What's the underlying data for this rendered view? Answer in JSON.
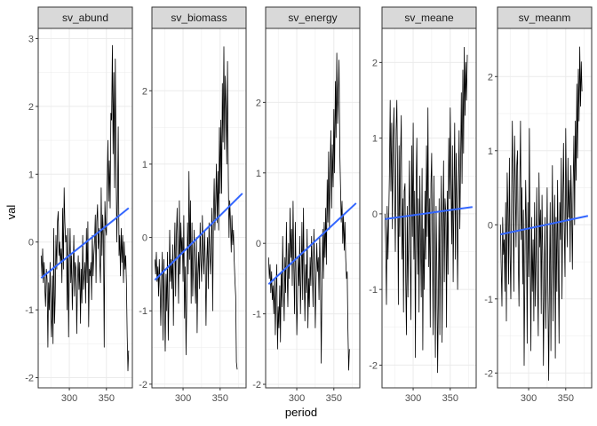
{
  "chart_data": {
    "type": "line",
    "xlabel": "period",
    "ylabel": "val",
    "grid": true,
    "colors": {
      "line": "#000000",
      "trend": "#3366ff",
      "strip": "#d9d9d9",
      "grid": "#ebebeb",
      "border": "#333333"
    },
    "x_start": 262,
    "x_step": 1,
    "x_ticks": [
      300,
      350
    ],
    "xlim": [
      258,
      385
    ],
    "panels": [
      {
        "name": "sv_abund",
        "ylim": [
          -2.15,
          3.15
        ],
        "y_ticks": [
          -2,
          -1,
          0,
          1,
          2,
          3
        ],
        "trend": {
          "x": [
            262,
            380
          ],
          "y": [
            -0.53,
            0.5
          ]
        },
        "values": [
          -0.2,
          -0.5,
          -0.1,
          -0.6,
          -0.3,
          -0.7,
          -0.95,
          -0.4,
          -0.55,
          -1.55,
          -0.6,
          -1.0,
          -0.3,
          -1.1,
          -1.4,
          -0.5,
          -1.5,
          0.2,
          -1.2,
          -0.8,
          0.1,
          -0.4,
          0.3,
          0.45,
          -0.2,
          0.0,
          -0.3,
          -0.1,
          -0.6,
          0.5,
          -0.4,
          0.8,
          0.3,
          0.0,
          0.1,
          -1.0,
          0.2,
          -1.4,
          -0.3,
          0.2,
          -0.6,
          -0.2,
          -1.0,
          -0.5,
          0.1,
          -0.8,
          -0.3,
          -0.4,
          -1.35,
          -0.6,
          -0.2,
          -0.7,
          -0.3,
          -1.2,
          -0.4,
          -0.9,
          0.1,
          -0.7,
          -0.5,
          -0.3,
          -0.9,
          0.2,
          -0.6,
          0.3,
          -1.25,
          -0.4,
          -0.5,
          -0.3,
          -0.85,
          0.1,
          -0.5,
          -0.2,
          0.0,
          0.4,
          -0.6,
          0.3,
          0.55,
          -0.1,
          0.2,
          -0.3,
          -0.6,
          0.8,
          -0.2,
          0.4,
          0.1,
          -1.55,
          0.6,
          0.2,
          0.1,
          0.8,
          1.5,
          0.6,
          1.2,
          0.5,
          1.9,
          1.8,
          2.9,
          1.3,
          2.5,
          0.8,
          2.7,
          1.2,
          0.0,
          0.7,
          1.7,
          -0.2,
          0.1,
          -0.5,
          0.2,
          -0.3,
          0.1,
          -0.6,
          0.0,
          -0.4,
          -0.2,
          -0.6,
          -1.4,
          -1.9,
          -1.6
        ]
      },
      {
        "name": "sv_biomass",
        "ylim": [
          -2.05,
          2.85
        ],
        "y_ticks": [
          -2,
          -1,
          0,
          1,
          2
        ],
        "trend": {
          "x": [
            262,
            380
          ],
          "y": [
            -0.58,
            0.6
          ]
        },
        "values": [
          -0.3,
          -0.5,
          -0.2,
          -0.6,
          -0.4,
          -0.8,
          -0.3,
          -0.7,
          -1.2,
          -0.6,
          -0.2,
          -1.4,
          -0.3,
          -0.9,
          -1.55,
          -0.5,
          -1.0,
          -0.2,
          -1.4,
          -0.8,
          0.1,
          -0.6,
          -0.3,
          -0.7,
          -0.1,
          -1.2,
          -0.4,
          0.2,
          -0.8,
          0.0,
          0.4,
          -0.3,
          -0.9,
          0.5,
          -0.5,
          0.2,
          -0.2,
          0.0,
          -0.6,
          0.3,
          -1.1,
          -0.4,
          -1.6,
          -0.9,
          0.2,
          -0.5,
          0.9,
          -0.3,
          0.5,
          -0.9,
          0.2,
          -0.8,
          -0.4,
          0.1,
          -0.6,
          -0.9,
          0.0,
          -1.3,
          -0.5,
          -0.2,
          -0.7,
          0.2,
          -0.3,
          -0.6,
          0.3,
          -0.2,
          -0.5,
          0.1,
          -0.4,
          -1.2,
          -0.3,
          0.0,
          -0.7,
          0.2,
          -0.2,
          -0.5,
          0.0,
          0.4,
          -1.0,
          0.3,
          0.8,
          0.1,
          0.5,
          1.0,
          0.2,
          0.9,
          0.1,
          1.5,
          0.6,
          1.6,
          0.6,
          2.1,
          1.3,
          2.6,
          1.2,
          2.2,
          1.7,
          1.0,
          2.4,
          0.8,
          0.0,
          0.5,
          0.2,
          -0.2,
          0.3,
          -0.1,
          0.1,
          -0.3,
          -0.6,
          -0.8,
          -1.7,
          -1.8
        ]
      },
      {
        "name": "sv_energy",
        "ylim": [
          -2.05,
          3.05
        ],
        "y_ticks": [
          -2,
          -1,
          0,
          1,
          2
        ],
        "trend": {
          "x": [
            262,
            380
          ],
          "y": [
            -0.58,
            0.57
          ]
        },
        "values": [
          -0.2,
          -0.5,
          -0.3,
          -0.7,
          -0.4,
          -0.8,
          -0.6,
          -1.0,
          -0.5,
          -1.3,
          -0.7,
          -0.3,
          -1.5,
          -0.9,
          -1.2,
          -0.6,
          -1.4,
          -0.4,
          -0.9,
          0.1,
          -0.6,
          -1.1,
          -0.2,
          -0.7,
          0.3,
          -0.4,
          -0.9,
          0.0,
          -0.5,
          0.5,
          -0.2,
          0.2,
          -0.6,
          0.6,
          -0.3,
          -1.0,
          0.3,
          -0.4,
          -1.3,
          -0.8,
          -0.2,
          -0.6,
          0.1,
          -1.0,
          -0.4,
          0.3,
          -0.8,
          0.5,
          -0.5,
          -1.1,
          -0.3,
          -0.7,
          0.2,
          -1.2,
          -0.5,
          -0.9,
          -0.2,
          -0.6,
          0.1,
          -0.4,
          -0.9,
          0.2,
          -0.3,
          -1.2,
          -0.5,
          0.0,
          -0.4,
          -0.2,
          -0.8,
          0.1,
          -0.5,
          -1.7,
          -0.6,
          0.2,
          -0.5,
          0.3,
          -0.2,
          0.5,
          -0.3,
          0.9,
          0.3,
          1.3,
          0.2,
          1.0,
          1.6,
          0.5,
          1.4,
          0.8,
          1.9,
          1.0,
          2.3,
          1.5,
          2.7,
          1.7,
          2.1,
          2.6,
          1.3,
          0.8,
          0.3,
          0.6,
          0.0,
          0.4,
          -0.1,
          0.3,
          -0.2,
          -0.5,
          -0.4,
          -1.2,
          -1.8,
          -1.5
        ]
      },
      {
        "name": "sv_meane",
        "ylim": [
          -2.3,
          2.45
        ],
        "y_ticks": [
          -2,
          -1,
          0,
          1,
          2
        ],
        "trend": {
          "x": [
            262,
            380
          ],
          "y": [
            -0.07,
            0.09
          ]
        },
        "values": [
          0.0,
          -0.4,
          -1.2,
          0.1,
          -0.6,
          -0.1,
          0.5,
          1.5,
          0.3,
          1.2,
          -0.2,
          0.9,
          1.4,
          0.4,
          -0.5,
          1.1,
          1.5,
          0.6,
          -1.2,
          0.9,
          -0.3,
          0.8,
          1.3,
          -0.6,
          0.2,
          -1.3,
          0.3,
          0.4,
          -0.9,
          -1.6,
          0.1,
          -1.1,
          -0.2,
          0.7,
          -0.5,
          -1.4,
          0.9,
          -0.3,
          1.2,
          -0.6,
          0.3,
          -1.9,
          0.4,
          1.0,
          -0.8,
          0.2,
          -1.3,
          0.5,
          -0.4,
          -1.1,
          0.6,
          -1.8,
          -0.2,
          -1.0,
          0.3,
          -0.6,
          0.9,
          -0.3,
          1.4,
          -0.7,
          0.2,
          -1.5,
          0.4,
          0.8,
          -0.5,
          -1.6,
          0.5,
          -0.9,
          -1.9,
          0.1,
          -0.8,
          -2.1,
          -1.2,
          0.2,
          -1.6,
          -0.3,
          0.5,
          -1.7,
          -0.4,
          0.7,
          -0.9,
          0.2,
          0.0,
          -1.5,
          0.3,
          -0.8,
          1.0,
          0.2,
          1.4,
          0.5,
          -0.4,
          0.9,
          -0.9,
          0.3,
          1.2,
          -0.6,
          0.8,
          0.0,
          -1.0,
          0.4,
          1.1,
          -0.2,
          0.7,
          1.6,
          0.4,
          1.9,
          0.8,
          2.2,
          1.3,
          2.0,
          1.5,
          2.1
        ]
      },
      {
        "name": "sv_meanm",
        "ylim": [
          -2.2,
          2.65
        ],
        "y_ticks": [
          -2,
          -1,
          0,
          1,
          2
        ],
        "trend": {
          "x": [
            262,
            380
          ],
          "y": [
            -0.13,
            0.12
          ]
        },
        "values": [
          0.0,
          -0.6,
          -1.1,
          0.1,
          -0.4,
          -0.2,
          -0.9,
          0.3,
          -1.3,
          0.7,
          0.2,
          -0.8,
          0.9,
          -0.4,
          -1.0,
          0.4,
          1.4,
          0.3,
          -0.9,
          1.2,
          0.6,
          -0.3,
          0.8,
          1.0,
          -0.5,
          -1.1,
          0.4,
          1.4,
          -0.2,
          0.5,
          -0.8,
          0.2,
          -1.9,
          -0.5,
          0.6,
          -0.1,
          -1.6,
          0.3,
          -0.7,
          1.3,
          -0.4,
          -1.7,
          0.1,
          -0.9,
          -0.2,
          -1.3,
          0.3,
          -1.1,
          -0.4,
          0.5,
          -0.8,
          -1.5,
          0.7,
          -0.3,
          0.2,
          -1.2,
          0.4,
          -0.5,
          -1.9,
          -0.7,
          0.1,
          -1.4,
          -0.6,
          0.5,
          -1.0,
          -2.1,
          -0.8,
          0.3,
          -1.7,
          -0.4,
          0.8,
          -1.3,
          -0.2,
          0.4,
          -1.8,
          0.1,
          -0.9,
          0.6,
          -0.5,
          -1.6,
          0.3,
          -0.2,
          0.9,
          -1.0,
          0.2,
          1.1,
          0.0,
          -0.7,
          1.3,
          0.4,
          -0.3,
          0.9,
          0.1,
          0.6,
          -0.5,
          0.8,
          0.2,
          -0.6,
          0.5,
          1.2,
          0.0,
          1.4,
          0.6,
          1.9,
          0.9,
          2.1,
          1.4,
          2.4,
          1.6,
          2.2,
          1.8
        ]
      }
    ]
  }
}
